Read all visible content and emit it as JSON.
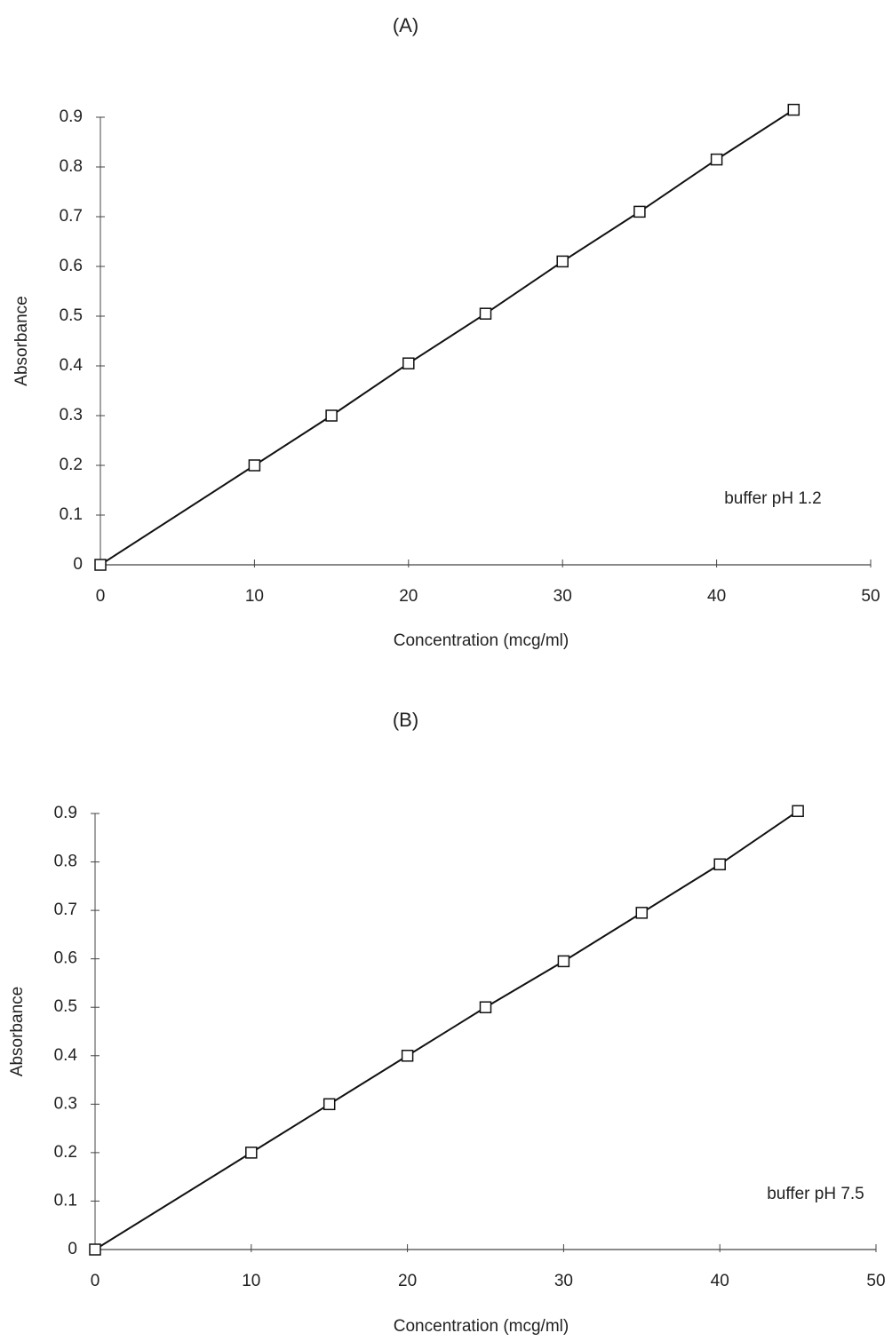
{
  "chart_data": [
    {
      "type": "line",
      "title": "(A)",
      "x_label": "Concentration (mcg/ml)",
      "y_label": "Absorbance",
      "annotation": "buffer pH 1.2",
      "x": [
        0,
        10,
        15,
        20,
        25,
        30,
        35,
        40,
        45
      ],
      "values": [
        0,
        0.2,
        0.3,
        0.405,
        0.505,
        0.61,
        0.71,
        0.815,
        0.915
      ],
      "color": "#111111",
      "marker": "square",
      "xlim": [
        0,
        50
      ],
      "ylim": [
        0,
        0.9
      ],
      "xticks": [
        0,
        10,
        20,
        30,
        40,
        50
      ],
      "yticks": [
        0,
        0.1,
        0.2,
        0.3,
        0.4,
        0.5,
        0.6,
        0.7,
        0.8,
        0.9
      ]
    },
    {
      "type": "line",
      "title": "(B)",
      "x_label": "Concentration (mcg/ml)",
      "y_label": "Absorbance",
      "annotation": "buffer pH 7.5",
      "x": [
        0,
        10,
        15,
        20,
        25,
        30,
        35,
        40,
        45
      ],
      "values": [
        0,
        0.2,
        0.3,
        0.4,
        0.5,
        0.595,
        0.695,
        0.795,
        0.905
      ],
      "color": "#111111",
      "marker": "square",
      "xlim": [
        0,
        50
      ],
      "ylim": [
        0,
        0.9
      ],
      "xticks": [
        0,
        10,
        20,
        30,
        40,
        50
      ],
      "yticks": [
        0,
        0.1,
        0.2,
        0.3,
        0.4,
        0.5,
        0.6,
        0.7,
        0.8,
        0.9
      ]
    }
  ]
}
